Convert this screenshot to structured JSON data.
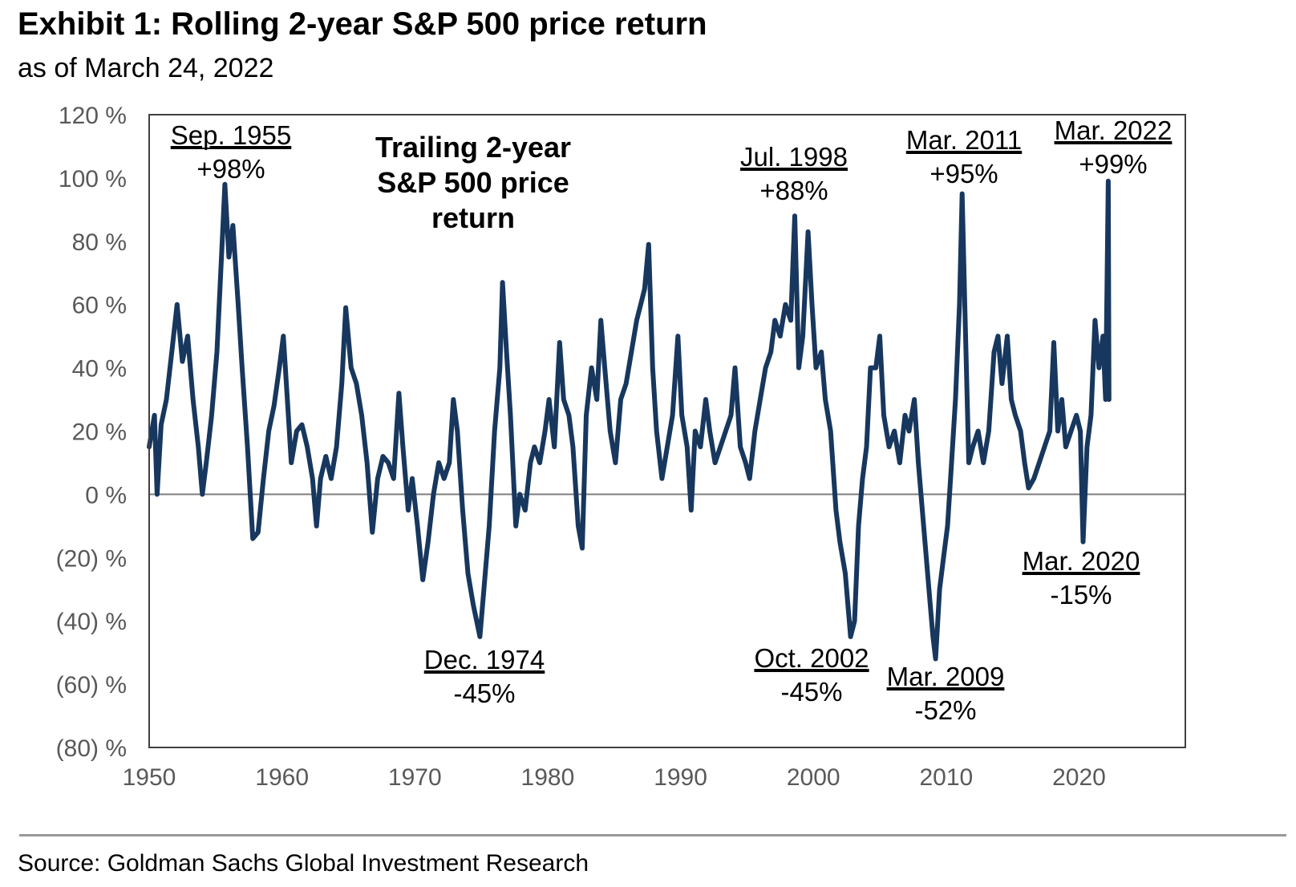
{
  "title": "Exhibit 1: Rolling 2-year S&P 500 price return",
  "subtitle": "as of March 24, 2022",
  "source": "Source: Goldman Sachs Global Investment Research",
  "colors": {
    "series": "#17375e",
    "axis_text": "#595959",
    "frame": "#404040",
    "zero_line": "#7f7f7f",
    "divider": "#999999"
  },
  "chart_data": {
    "type": "line",
    "title": "Trailing 2-year S&P 500 price return",
    "xlabel": "",
    "ylabel": "",
    "xlim": [
      1950,
      2028
    ],
    "ylim": [
      -80,
      120
    ],
    "x_ticks": [
      1950,
      1960,
      1970,
      1980,
      1990,
      2000,
      2010,
      2020
    ],
    "x_tick_labels": [
      "1950",
      "1960",
      "1970",
      "1980",
      "1990",
      "2000",
      "2010",
      "2020"
    ],
    "y_ticks": [
      120,
      100,
      80,
      60,
      40,
      20,
      0,
      -20,
      -40,
      -60,
      -80
    ],
    "y_tick_labels": [
      "120 %",
      "100 %",
      "80 %",
      "60 %",
      "40 %",
      "20 %",
      "0 %",
      "(20) %",
      "(40) %",
      "(60) %",
      "(80) %"
    ],
    "grid": false,
    "zero_line": true,
    "series": [
      {
        "name": "Trailing 2-year S&P 500 price return",
        "points": [
          [
            1950.0,
            15
          ],
          [
            1950.4,
            25
          ],
          [
            1950.6,
            0
          ],
          [
            1950.9,
            22
          ],
          [
            1951.3,
            30
          ],
          [
            1951.7,
            45
          ],
          [
            1952.1,
            60
          ],
          [
            1952.5,
            42
          ],
          [
            1952.9,
            50
          ],
          [
            1953.3,
            30
          ],
          [
            1953.7,
            15
          ],
          [
            1954.0,
            0
          ],
          [
            1954.3,
            10
          ],
          [
            1954.7,
            25
          ],
          [
            1955.1,
            45
          ],
          [
            1955.5,
            80
          ],
          [
            1955.7,
            98
          ],
          [
            1956.0,
            75
          ],
          [
            1956.3,
            85
          ],
          [
            1956.7,
            60
          ],
          [
            1957.0,
            40
          ],
          [
            1957.4,
            15
          ],
          [
            1957.8,
            -14
          ],
          [
            1958.2,
            -12
          ],
          [
            1958.6,
            5
          ],
          [
            1959.0,
            20
          ],
          [
            1959.4,
            28
          ],
          [
            1959.8,
            40
          ],
          [
            1960.1,
            50
          ],
          [
            1960.4,
            30
          ],
          [
            1960.7,
            10
          ],
          [
            1961.1,
            20
          ],
          [
            1961.5,
            22
          ],
          [
            1961.9,
            15
          ],
          [
            1962.3,
            5
          ],
          [
            1962.6,
            -10
          ],
          [
            1962.9,
            5
          ],
          [
            1963.3,
            12
          ],
          [
            1963.7,
            5
          ],
          [
            1964.1,
            15
          ],
          [
            1964.5,
            35
          ],
          [
            1964.8,
            59
          ],
          [
            1965.2,
            40
          ],
          [
            1965.6,
            35
          ],
          [
            1966.0,
            25
          ],
          [
            1966.4,
            10
          ],
          [
            1966.8,
            -12
          ],
          [
            1967.2,
            5
          ],
          [
            1967.6,
            12
          ],
          [
            1968.0,
            10
          ],
          [
            1968.4,
            5
          ],
          [
            1968.8,
            32
          ],
          [
            1969.1,
            15
          ],
          [
            1969.5,
            -5
          ],
          [
            1969.8,
            5
          ],
          [
            1970.2,
            -10
          ],
          [
            1970.6,
            -27
          ],
          [
            1971.0,
            -15
          ],
          [
            1971.4,
            0
          ],
          [
            1971.8,
            10
          ],
          [
            1972.2,
            5
          ],
          [
            1972.6,
            10
          ],
          [
            1972.9,
            30
          ],
          [
            1973.2,
            20
          ],
          [
            1973.6,
            -5
          ],
          [
            1974.0,
            -25
          ],
          [
            1974.4,
            -35
          ],
          [
            1974.9,
            -45
          ],
          [
            1975.2,
            -30
          ],
          [
            1975.6,
            -10
          ],
          [
            1976.0,
            20
          ],
          [
            1976.4,
            40
          ],
          [
            1976.6,
            67
          ],
          [
            1976.9,
            45
          ],
          [
            1977.2,
            25
          ],
          [
            1977.6,
            -10
          ],
          [
            1977.9,
            0
          ],
          [
            1978.3,
            -5
          ],
          [
            1978.7,
            10
          ],
          [
            1979.0,
            15
          ],
          [
            1979.4,
            10
          ],
          [
            1979.8,
            20
          ],
          [
            1980.1,
            30
          ],
          [
            1980.5,
            15
          ],
          [
            1980.9,
            48
          ],
          [
            1981.2,
            30
          ],
          [
            1981.6,
            25
          ],
          [
            1981.9,
            15
          ],
          [
            1982.3,
            -10
          ],
          [
            1982.6,
            -17
          ],
          [
            1982.9,
            25
          ],
          [
            1983.3,
            40
          ],
          [
            1983.7,
            30
          ],
          [
            1984.0,
            55
          ],
          [
            1984.3,
            40
          ],
          [
            1984.7,
            20
          ],
          [
            1985.1,
            10
          ],
          [
            1985.5,
            30
          ],
          [
            1985.9,
            35
          ],
          [
            1986.3,
            45
          ],
          [
            1986.7,
            55
          ],
          [
            1987.0,
            60
          ],
          [
            1987.3,
            65
          ],
          [
            1987.6,
            79
          ],
          [
            1987.9,
            40
          ],
          [
            1988.2,
            20
          ],
          [
            1988.6,
            5
          ],
          [
            1989.0,
            15
          ],
          [
            1989.4,
            25
          ],
          [
            1989.8,
            50
          ],
          [
            1990.1,
            25
          ],
          [
            1990.5,
            15
          ],
          [
            1990.8,
            -5
          ],
          [
            1991.1,
            20
          ],
          [
            1991.5,
            15
          ],
          [
            1991.9,
            30
          ],
          [
            1992.2,
            20
          ],
          [
            1992.6,
            10
          ],
          [
            1993.0,
            15
          ],
          [
            1993.4,
            20
          ],
          [
            1993.8,
            25
          ],
          [
            1994.1,
            40
          ],
          [
            1994.5,
            15
          ],
          [
            1994.9,
            10
          ],
          [
            1995.2,
            5
          ],
          [
            1995.6,
            20
          ],
          [
            1996.0,
            30
          ],
          [
            1996.4,
            40
          ],
          [
            1996.8,
            45
          ],
          [
            1997.1,
            55
          ],
          [
            1997.5,
            50
          ],
          [
            1997.9,
            60
          ],
          [
            1998.3,
            55
          ],
          [
            1998.6,
            88
          ],
          [
            1998.9,
            40
          ],
          [
            1999.2,
            50
          ],
          [
            1999.6,
            83
          ],
          [
            1999.9,
            60
          ],
          [
            2000.2,
            40
          ],
          [
            2000.6,
            45
          ],
          [
            2000.9,
            30
          ],
          [
            2001.3,
            20
          ],
          [
            2001.7,
            -5
          ],
          [
            2002.0,
            -15
          ],
          [
            2002.4,
            -25
          ],
          [
            2002.8,
            -45
          ],
          [
            2003.1,
            -40
          ],
          [
            2003.4,
            -10
          ],
          [
            2003.7,
            5
          ],
          [
            2004.0,
            15
          ],
          [
            2004.3,
            40
          ],
          [
            2004.7,
            40
          ],
          [
            2005.0,
            50
          ],
          [
            2005.3,
            25
          ],
          [
            2005.7,
            15
          ],
          [
            2006.1,
            20
          ],
          [
            2006.5,
            10
          ],
          [
            2006.9,
            25
          ],
          [
            2007.2,
            20
          ],
          [
            2007.6,
            30
          ],
          [
            2007.9,
            10
          ],
          [
            2008.3,
            -10
          ],
          [
            2008.7,
            -30
          ],
          [
            2009.0,
            -45
          ],
          [
            2009.2,
            -52
          ],
          [
            2009.5,
            -30
          ],
          [
            2009.8,
            -20
          ],
          [
            2010.1,
            -10
          ],
          [
            2010.4,
            10
          ],
          [
            2010.7,
            30
          ],
          [
            2011.0,
            60
          ],
          [
            2011.2,
            95
          ],
          [
            2011.4,
            60
          ],
          [
            2011.7,
            10
          ],
          [
            2012.0,
            15
          ],
          [
            2012.4,
            20
          ],
          [
            2012.8,
            10
          ],
          [
            2013.2,
            20
          ],
          [
            2013.6,
            45
          ],
          [
            2013.9,
            50
          ],
          [
            2014.2,
            35
          ],
          [
            2014.6,
            50
          ],
          [
            2014.9,
            30
          ],
          [
            2015.2,
            25
          ],
          [
            2015.6,
            20
          ],
          [
            2015.9,
            10
          ],
          [
            2016.2,
            2
          ],
          [
            2016.6,
            5
          ],
          [
            2017.0,
            10
          ],
          [
            2017.4,
            15
          ],
          [
            2017.8,
            20
          ],
          [
            2018.1,
            48
          ],
          [
            2018.4,
            20
          ],
          [
            2018.7,
            30
          ],
          [
            2019.0,
            15
          ],
          [
            2019.4,
            20
          ],
          [
            2019.8,
            25
          ],
          [
            2020.1,
            20
          ],
          [
            2020.3,
            -15
          ],
          [
            2020.6,
            15
          ],
          [
            2020.9,
            25
          ],
          [
            2021.2,
            55
          ],
          [
            2021.5,
            40
          ],
          [
            2021.8,
            50
          ],
          [
            2022.0,
            30
          ],
          [
            2022.1,
            65
          ],
          [
            2022.2,
            99
          ],
          [
            2022.25,
            30
          ]
        ]
      }
    ],
    "annotations": [
      {
        "label": "Sep. 1955",
        "value": "+98%"
      },
      {
        "label": "Jul. 1998",
        "value": "+88%"
      },
      {
        "label": "Mar. 2011",
        "value": "+95%"
      },
      {
        "label": "Mar. 2022",
        "value": "+99%"
      },
      {
        "label": "Dec. 1974",
        "value": "-45%"
      },
      {
        "label": "Oct. 2002",
        "value": "-45%"
      },
      {
        "label": "Mar. 2009",
        "value": "-52%"
      },
      {
        "label": "Mar. 2020",
        "value": "-15%"
      }
    ]
  }
}
